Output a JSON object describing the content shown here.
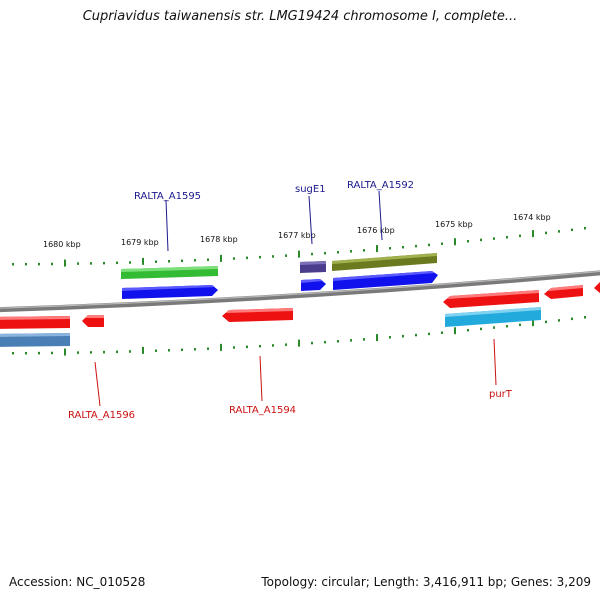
{
  "title": "Cupriavidus taiwanensis str. LMG19424 chromosome I, complete...",
  "footer": {
    "accession": "Accession: NC_010528",
    "summary": "Topology: circular; Length: 3,416,911 bp; Genes: 3,209"
  },
  "ticks": [
    "1680 kbp",
    "1679 kbp",
    "1678 kbp",
    "1677 kbp",
    "1676 kbp",
    "1675 kbp",
    "1674 kbp"
  ],
  "gene_labels": {
    "ralta_a1595": "RALTA_A1595",
    "suge1": "sugE1",
    "ralta_a1592": "RALTA_A1592",
    "ralta_a1596": "RALTA_A1596",
    "ralta_a1594": "RALTA_A1594",
    "purt": "purT"
  },
  "colors": {
    "upper_label": "#1a1a8c",
    "lower_label": "#cc1111",
    "backbone": "#808080",
    "tick": "#2a8a2a",
    "red_gene": "#ee1111",
    "blue_gene": "#1111ee",
    "green_gene": "#33bb33",
    "olive_gene": "#6b7a1f",
    "purple_gene": "#4b3c8c",
    "cyan_gene": "#22aadd",
    "steel_gene": "#4a7fb5"
  }
}
